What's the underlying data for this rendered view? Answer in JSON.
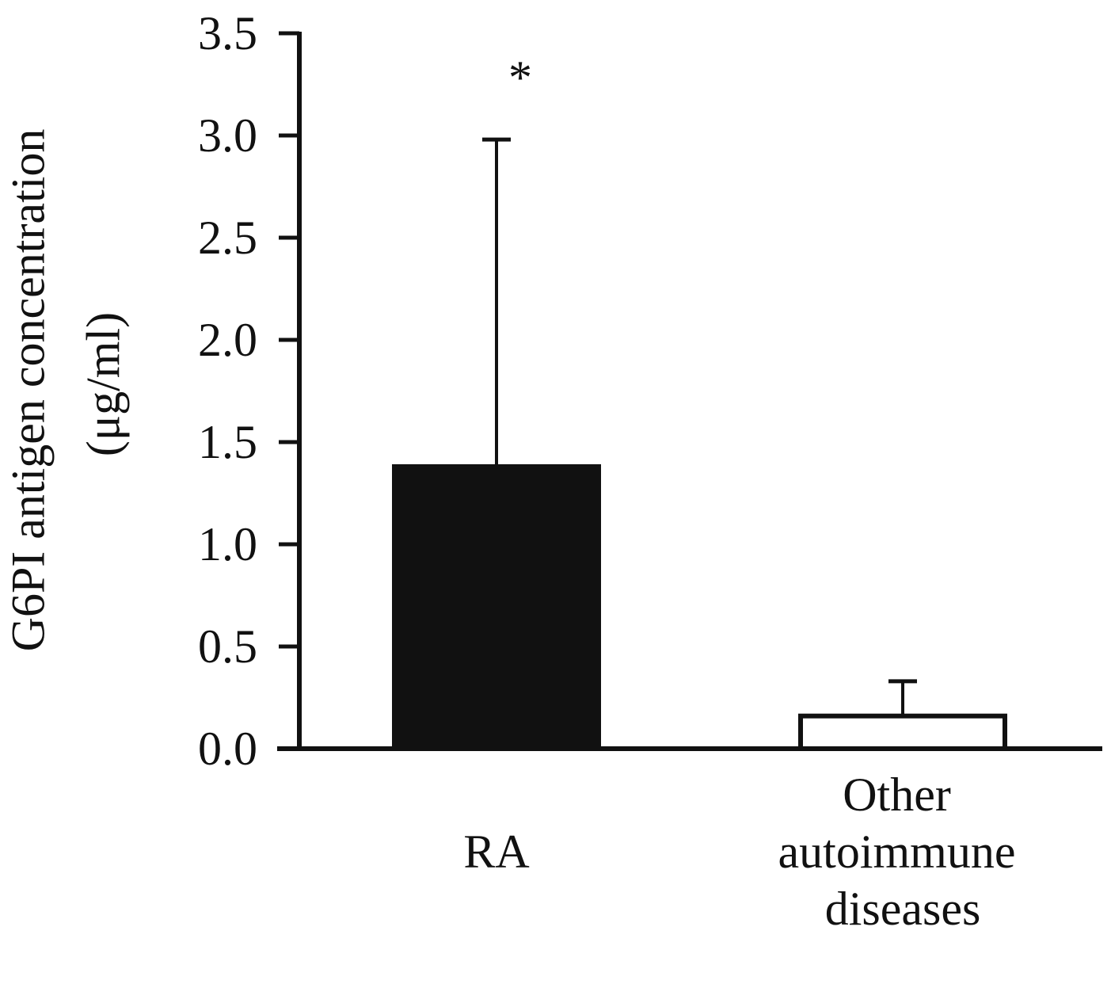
{
  "chart_data": {
    "type": "bar",
    "ylabel": "G6PI antigen concentration (μg/ml)",
    "categories": [
      "RA",
      "Other autoimmune diseases"
    ],
    "values": [
      1.38,
      0.16
    ],
    "errors": [
      1.6,
      0.17
    ],
    "colors": [
      "#111111",
      "#ffffff"
    ],
    "annotations": [
      {
        "text": "*",
        "category": 0
      }
    ],
    "ylim": [
      0,
      3.5
    ],
    "yticks": [
      {
        "value": 0,
        "label": "0.0"
      },
      0.5,
      {
        "value": 1,
        "label": "1.0"
      },
      1.5,
      {
        "value": 2,
        "label": "2.0"
      },
      2.5,
      {
        "value": 3,
        "label": "3.0"
      },
      3.5
    ],
    "grid": false
  }
}
